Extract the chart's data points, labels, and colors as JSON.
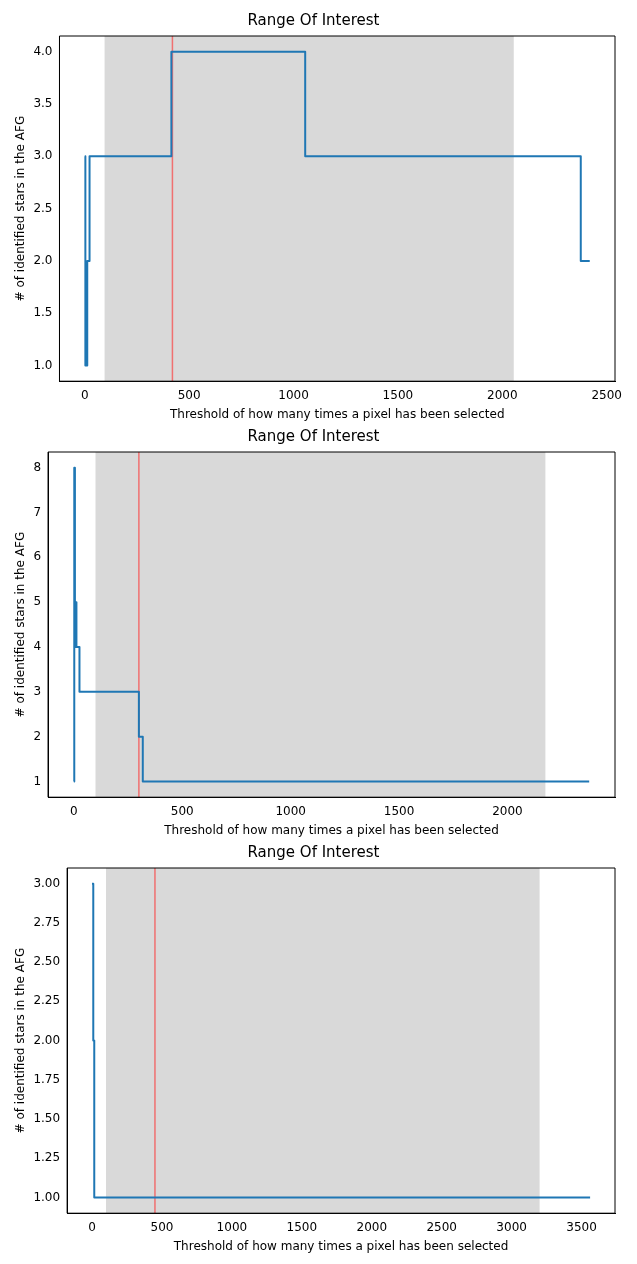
{
  "chart_data": [
    {
      "type": "step",
      "title": "Range Of Interest",
      "xlabel": "Threshold of how many times a pixel has been selected",
      "ylabel": "# of identified stars in the AFG",
      "x": [
        0,
        3,
        12,
        23,
        415,
        1056,
        2376,
        2419
      ],
      "values": [
        3,
        1,
        2,
        3,
        4,
        3,
        2,
        2
      ],
      "color": "#1f77b4",
      "xlim": [
        -121,
        2540
      ],
      "ylim": [
        0.85,
        4.15
      ],
      "xticks": [
        0,
        500,
        1000,
        1500,
        2000,
        2500
      ],
      "yticks": [
        {
          "value": 1,
          "label": "1.0"
        },
        1.5,
        {
          "value": 2,
          "label": "2.0"
        },
        2.5,
        {
          "value": 3,
          "label": "3.0"
        },
        3.5,
        {
          "value": 4,
          "label": "4.0"
        }
      ],
      "bands": [
        {
          "axis": "x",
          "from": 95,
          "to": 2055,
          "color": "#d9d9d9"
        }
      ],
      "ref_lines": [
        {
          "axis": "x",
          "value": 420,
          "color": "#f07070"
        }
      ]
    },
    {
      "type": "step",
      "title": "Range Of Interest",
      "xlabel": "Threshold of how many times a pixel has been selected",
      "ylabel": "# of identified stars in the AFG",
      "x": [
        0,
        2,
        5,
        7,
        12,
        26,
        300,
        318,
        2377
      ],
      "values": [
        1,
        8,
        4,
        5,
        4,
        3,
        2,
        1,
        1
      ],
      "color": "#1f77b4",
      "xlim": [
        -119,
        2496
      ],
      "ylim": [
        0.65,
        8.35
      ],
      "xticks": [
        0,
        500,
        1000,
        1500,
        2000
      ],
      "yticks": [
        1,
        2,
        3,
        4,
        5,
        6,
        7,
        8
      ],
      "bands": [
        {
          "axis": "x",
          "from": 100,
          "to": 2175,
          "color": "#d9d9d9"
        }
      ],
      "ref_lines": [
        {
          "axis": "x",
          "value": 300,
          "color": "#f07070"
        }
      ]
    },
    {
      "type": "step",
      "title": "Range Of Interest",
      "xlabel": "Threshold of how many times a pixel has been selected",
      "ylabel": "# of identified stars in the AFG",
      "x": [
        0,
        9,
        16,
        3561
      ],
      "values": [
        3,
        2,
        1,
        1
      ],
      "color": "#1f77b4",
      "xlim": [
        -178,
        3739
      ],
      "ylim": [
        0.9,
        3.1
      ],
      "xticks": [
        0,
        500,
        1000,
        1500,
        2000,
        2500,
        3000,
        3500
      ],
      "yticks": [
        {
          "value": 1,
          "label": "1.00"
        },
        1.25,
        {
          "value": 1.5,
          "label": "1.50"
        },
        1.75,
        {
          "value": 2,
          "label": "2.00"
        },
        2.25,
        {
          "value": 2.5,
          "label": "2.50"
        },
        2.75,
        {
          "value": 3,
          "label": "3.00"
        }
      ],
      "bands": [
        {
          "axis": "x",
          "from": 100,
          "to": 3200,
          "color": "#d9d9d9"
        }
      ],
      "ref_lines": [
        {
          "axis": "x",
          "value": 450,
          "color": "#f07070"
        }
      ]
    }
  ]
}
